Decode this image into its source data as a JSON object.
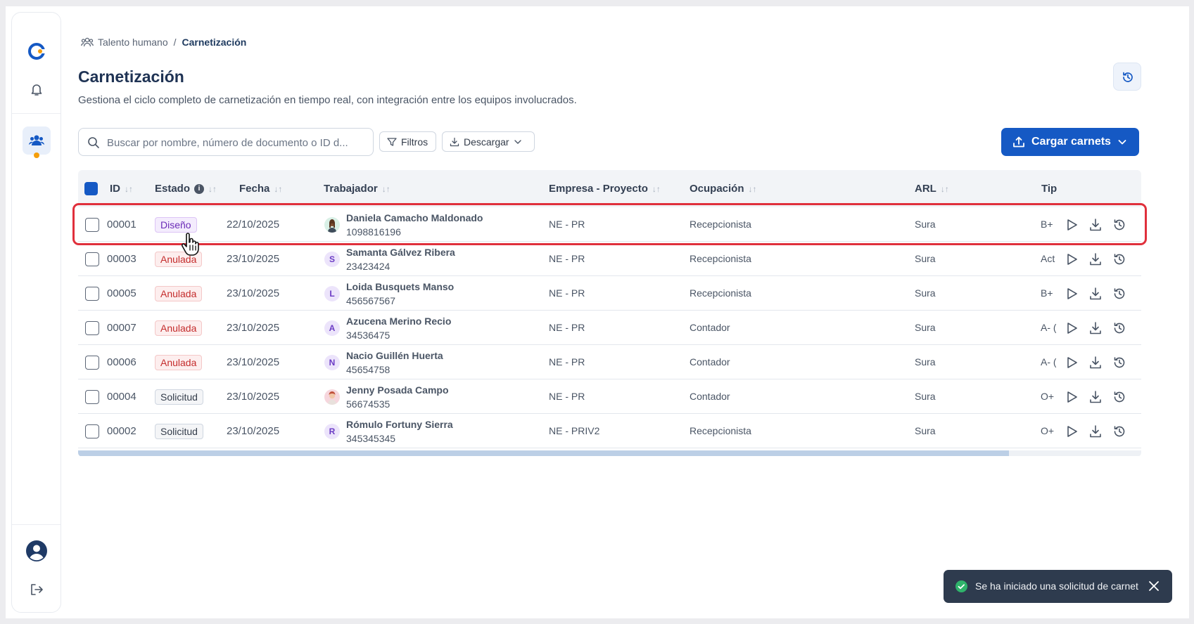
{
  "breadcrumb": {
    "parent": "Talento humano",
    "separator": "/",
    "current": "Carnetización"
  },
  "page": {
    "title": "Carnetización",
    "subtitle": "Gestiona el ciclo completo de carnetización en tiempo real, con integración entre los equipos involucrados."
  },
  "toolbar": {
    "search_placeholder": "Buscar por nombre, número de documento o ID d...",
    "filters_label": "Filtros",
    "download_label": "Descargar",
    "upload_label": "Cargar carnets"
  },
  "table": {
    "headers": {
      "id": "ID",
      "estado": "Estado",
      "fecha": "Fecha",
      "trabajador": "Trabajador",
      "empresa": "Empresa - Proyecto",
      "ocupacion": "Ocupación",
      "arl": "ARL",
      "tipo": "Tip"
    },
    "rows": [
      {
        "id": "00001",
        "estado": "Diseño",
        "fecha": "22/10/2025",
        "avatar": "",
        "nombre": "Daniela Camacho Maldonado",
        "documento": "1098816196",
        "empresa": "NE - PR",
        "ocupacion": "Recepcionista",
        "arl": "Sura",
        "tipo": "B+ ("
      },
      {
        "id": "00003",
        "estado": "Anulada",
        "fecha": "23/10/2025",
        "avatar": "S",
        "nombre": "Samanta Gálvez Ribera",
        "documento": "23423424",
        "empresa": "NE - PR",
        "ocupacion": "Recepcionista",
        "arl": "Sura",
        "tipo": "Act"
      },
      {
        "id": "00005",
        "estado": "Anulada",
        "fecha": "23/10/2025",
        "avatar": "L",
        "nombre": "Loida Busquets Manso",
        "documento": "456567567",
        "empresa": "NE - PR",
        "ocupacion": "Recepcionista",
        "arl": "Sura",
        "tipo": "B+ ("
      },
      {
        "id": "00007",
        "estado": "Anulada",
        "fecha": "23/10/2025",
        "avatar": "A",
        "nombre": "Azucena Merino Recio",
        "documento": "34536475",
        "empresa": "NE - PR",
        "ocupacion": "Contador",
        "arl": "Sura",
        "tipo": "A- ("
      },
      {
        "id": "00006",
        "estado": "Anulada",
        "fecha": "23/10/2025",
        "avatar": "N",
        "nombre": "Nacio Guillén Huerta",
        "documento": "45654758",
        "empresa": "NE - PR",
        "ocupacion": "Contador",
        "arl": "Sura",
        "tipo": "A- ("
      },
      {
        "id": "00004",
        "estado": "Solicitud",
        "fecha": "23/10/2025",
        "avatar": "",
        "nombre": "Jenny Posada Campo",
        "documento": "56674535",
        "empresa": "NE - PR",
        "ocupacion": "Contador",
        "arl": "Sura",
        "tipo": "O+"
      },
      {
        "id": "00002",
        "estado": "Solicitud",
        "fecha": "23/10/2025",
        "avatar": "R",
        "nombre": "Rómulo Fortuny Sierra",
        "documento": "345345345",
        "empresa": "NE - PRIV2",
        "ocupacion": "Recepcionista",
        "arl": "Sura",
        "tipo": "O+"
      }
    ]
  },
  "toast": {
    "message": "Se ha iniciado una solicitud de carnet"
  },
  "colors": {
    "primary": "#1559c4",
    "danger": "#c42c2c",
    "design": "#6b2bb7",
    "success": "#2fb36b",
    "notification_dot": "#f59e0b"
  }
}
